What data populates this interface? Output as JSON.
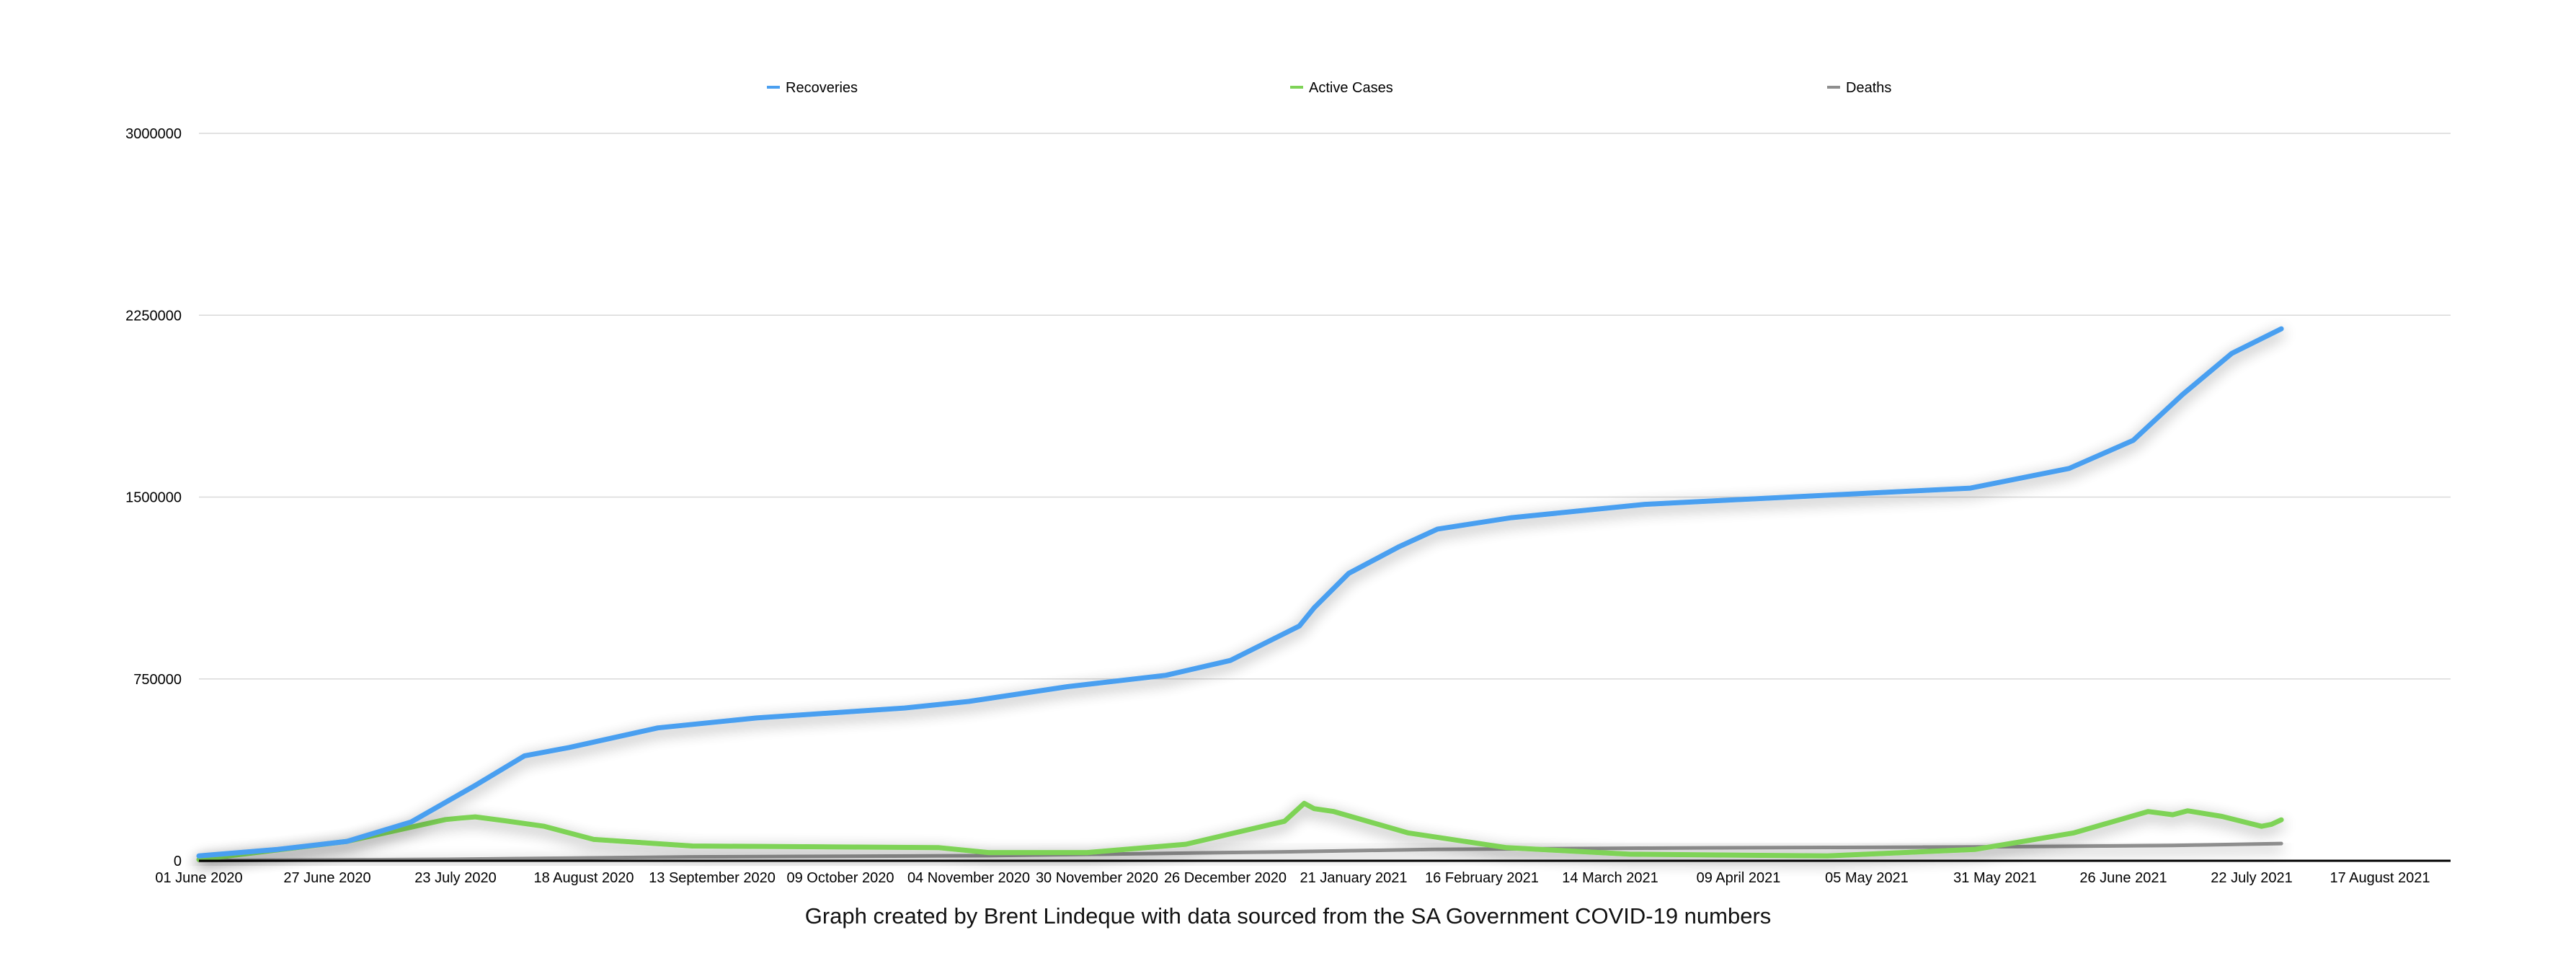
{
  "chart_data": {
    "type": "line",
    "title": "",
    "caption": "Graph created by Brent Lindeque with data sourced from the SA Government COVID-19 numbers",
    "xlabel": "",
    "ylabel": "",
    "x_unit": "days since 01 June 2020",
    "xlim": [
      0,
      456
    ],
    "ylim": [
      0,
      3000000
    ],
    "grid": true,
    "legend_position": "top",
    "y_ticks": [
      0,
      750000,
      1500000,
      2250000,
      3000000
    ],
    "y_tick_labels": [
      "0",
      "750000",
      "1500000",
      "2250000",
      "3000000"
    ],
    "x_ticks": [
      0,
      26,
      52,
      78,
      104,
      130,
      156,
      182,
      208,
      234,
      260,
      286,
      312,
      338,
      364,
      390,
      416,
      442
    ],
    "x_tick_labels": [
      "01 June 2020",
      "27 June 2020",
      "23 July 2020",
      "18 August 2020",
      "13 September 2020",
      "09 October 2020",
      "04 November 2020",
      "30 November 2020",
      "26 December 2020",
      "21 January 2021",
      "16 February 2021",
      "14 March 2021",
      "09 April 2021",
      "05 May 2021",
      "31 May 2021",
      "26 June 2021",
      "22 July 2021",
      "17 August 2021"
    ],
    "series": [
      {
        "name": "Recoveries",
        "color": "#4a9ff0",
        "x": [
          0,
          16,
          30,
          43,
          56,
          66,
          75,
          93,
          113,
          143,
          156,
          176,
          196,
          209,
          223,
          226,
          233,
          243,
          251,
          266,
          293,
          326,
          359,
          379,
          392,
          402,
          412,
          422
        ],
        "values": [
          20000,
          47000,
          80000,
          160000,
          311000,
          433000,
          467000,
          548000,
          589000,
          630000,
          657000,
          718000,
          765000,
          826000,
          968000,
          1043000,
          1185000,
          1293000,
          1368000,
          1415000,
          1470000,
          1504000,
          1537000,
          1618000,
          1734000,
          1923000,
          2093000,
          2194000
        ]
      },
      {
        "name": "Active Cases",
        "color": "#7ed357",
        "x": [
          0,
          30,
          50,
          53,
          56,
          62,
          70,
          80,
          100,
          150,
          160,
          180,
          200,
          220,
          224,
          226,
          230,
          245,
          265,
          290,
          330,
          360,
          380,
          395,
          400,
          403,
          410,
          418,
          420,
          422
        ],
        "values": [
          5000,
          80000,
          170000,
          176000,
          181000,
          165000,
          142000,
          88000,
          61000,
          54000,
          34000,
          34000,
          68000,
          163000,
          237000,
          215000,
          203000,
          115000,
          54000,
          27000,
          20000,
          47000,
          115000,
          203000,
          190000,
          206000,
          183000,
          142000,
          150000,
          169000
        ]
      },
      {
        "name": "Deaths",
        "color": "#8e8e8e",
        "x": [
          0,
          50,
          100,
          160,
          220,
          250,
          300,
          360,
          400,
          422
        ],
        "values": [
          1000,
          6000,
          16000,
          21000,
          37000,
          47000,
          53000,
          57000,
          63000,
          71000
        ]
      }
    ]
  }
}
